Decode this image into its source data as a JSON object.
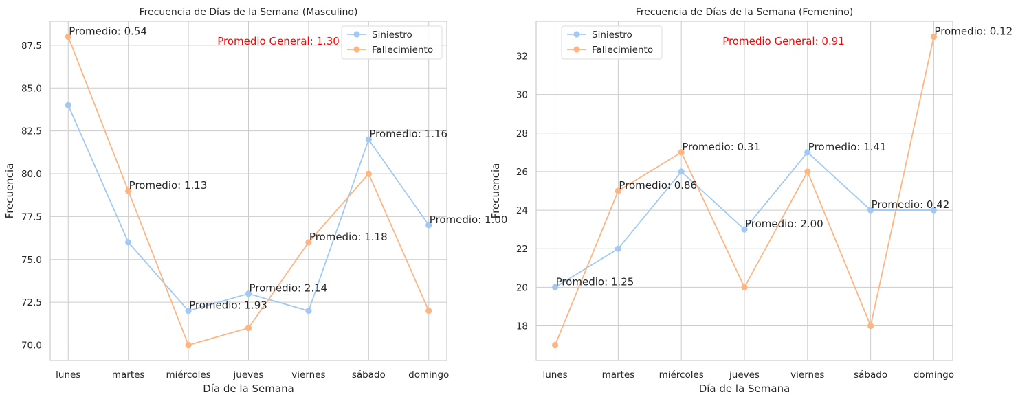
{
  "chart_data": [
    {
      "type": "line",
      "title": "Frecuencia de Días de la Semana (Masculino)",
      "xlabel": "Día de la Semana",
      "ylabel": "Frecuencia",
      "categories": [
        "lunes",
        "martes",
        "miércoles",
        "jueves",
        "viernes",
        "sábado",
        "domingo"
      ],
      "series": [
        {
          "name": "Siniestro",
          "color": "#a1c9f4",
          "values": [
            84,
            76,
            72,
            73,
            72,
            82,
            77
          ]
        },
        {
          "name": "Fallecimiento",
          "color": "#ffb482",
          "values": [
            88,
            79,
            70,
            71,
            76,
            80,
            72
          ]
        }
      ],
      "yticks": [
        70.0,
        72.5,
        75.0,
        77.5,
        80.0,
        82.5,
        85.0,
        87.5
      ],
      "ytick_labels": [
        "70.0",
        "72.5",
        "75.0",
        "77.5",
        "80.0",
        "82.5",
        "85.0",
        "87.5"
      ],
      "ylim": [
        69.1,
        88.9
      ],
      "annotations": [
        {
          "text": "Promedio: 0.54",
          "category": "lunes",
          "y": 88
        },
        {
          "text": "Promedio: 1.13",
          "category": "martes",
          "y": 79
        },
        {
          "text": "Promedio: 1.93",
          "category": "miércoles",
          "y": 72
        },
        {
          "text": "Promedio: 2.14",
          "category": "jueves",
          "y": 73
        },
        {
          "text": "Promedio: 1.18",
          "category": "viernes",
          "y": 76
        },
        {
          "text": "Promedio: 1.16",
          "category": "sábado",
          "y": 82
        },
        {
          "text": "Promedio: 1.00",
          "category": "domingo",
          "y": 77
        }
      ],
      "general_label": "Promedio General: 1.30",
      "general_color": "#ff0000",
      "legend_position": "top-right",
      "grid": true
    },
    {
      "type": "line",
      "title": "Frecuencia de Días de la Semana (Femenino)",
      "xlabel": "Día de la Semana",
      "ylabel": "Frecuencia",
      "categories": [
        "lunes",
        "martes",
        "miércoles",
        "jueves",
        "viernes",
        "sábado",
        "domingo"
      ],
      "series": [
        {
          "name": "Siniestro",
          "color": "#a1c9f4",
          "values": [
            20,
            22,
            26,
            23,
            27,
            24,
            24
          ]
        },
        {
          "name": "Fallecimiento",
          "color": "#ffb482",
          "values": [
            17,
            25,
            27,
            20,
            26,
            18,
            33
          ]
        }
      ],
      "yticks": [
        18,
        20,
        22,
        24,
        26,
        28,
        30,
        32
      ],
      "ytick_labels": [
        "18",
        "20",
        "22",
        "24",
        "26",
        "28",
        "30",
        "32"
      ],
      "ylim": [
        16.2,
        33.8
      ],
      "annotations": [
        {
          "text": "Promedio: 1.25",
          "category": "lunes",
          "y": 20
        },
        {
          "text": "Promedio: 0.86",
          "category": "martes",
          "y": 25
        },
        {
          "text": "Promedio: 0.31",
          "category": "miércoles",
          "y": 27
        },
        {
          "text": "Promedio: 2.00",
          "category": "jueves",
          "y": 23
        },
        {
          "text": "Promedio: 1.41",
          "category": "viernes",
          "y": 27
        },
        {
          "text": "Promedio: 0.42",
          "category": "sábado",
          "y": 24
        },
        {
          "text": "Promedio: 0.12",
          "category": "domingo",
          "y": 33
        }
      ],
      "general_label": "Promedio General: 0.91",
      "general_color": "#ff0000",
      "legend_position": "top-left",
      "grid": true
    }
  ]
}
